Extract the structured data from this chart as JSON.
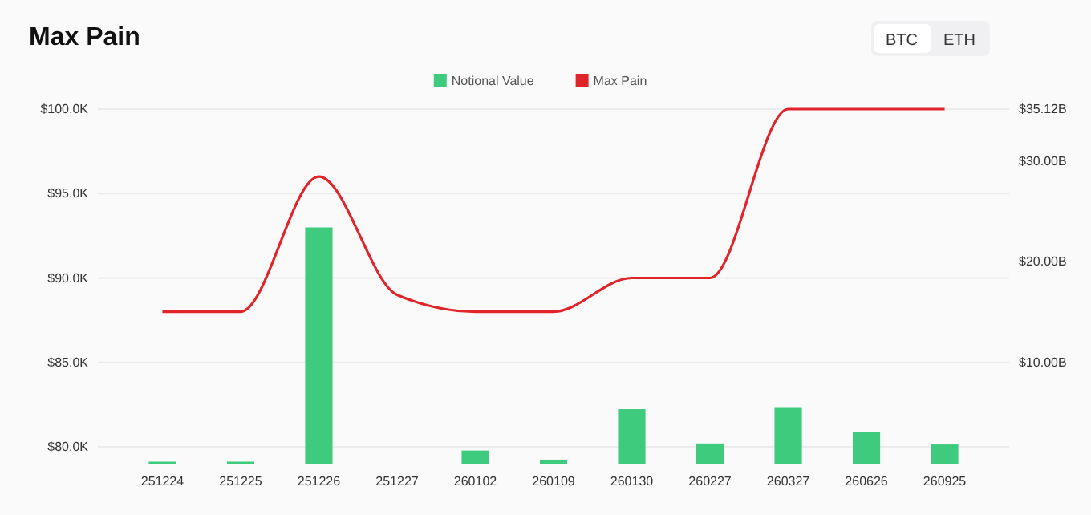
{
  "chart_data": {
    "type": "bar",
    "title": "Max Pain",
    "categories": [
      "251224",
      "251225",
      "251226",
      "251227",
      "260102",
      "260109",
      "260130",
      "260227",
      "260327",
      "260626",
      "260925"
    ],
    "series": [
      {
        "name": "Notional Value",
        "axis": "y2",
        "color": "#3ecb7d",
        "values": [
          0.2,
          0.2,
          23.4,
          0,
          1.3,
          0.4,
          5.4,
          2.0,
          5.6,
          3.1,
          1.9
        ]
      },
      {
        "name": "Max Pain",
        "type": "line",
        "axis": "y",
        "color": "#e0242a",
        "values": [
          88000,
          88000,
          96000,
          89000,
          88000,
          88000,
          90000,
          90000,
          100000,
          100000,
          100000
        ]
      }
    ],
    "ylim": [
      79000,
      100000
    ],
    "yticks": [
      {
        "value": 80000,
        "label": "$80.0K"
      },
      {
        "value": 85000,
        "label": "$85.0K"
      },
      {
        "value": 90000,
        "label": "$90.0K"
      },
      {
        "value": 95000,
        "label": "$95.0K"
      },
      {
        "value": 100000,
        "label": "$100.0K"
      }
    ],
    "y2lim": [
      0,
      35.12
    ],
    "y2ticks": [
      {
        "value": 10,
        "label": "$10.00B"
      },
      {
        "value": 20,
        "label": "$20.00B"
      },
      {
        "value": 30,
        "label": "$30.00B"
      },
      {
        "value": 35.12,
        "label": "$35.12B"
      }
    ],
    "grid": "y",
    "legend": "top",
    "marker": "none",
    "line_style": "solid",
    "annotations": [
      "BTC",
      "ETH"
    ]
  }
}
